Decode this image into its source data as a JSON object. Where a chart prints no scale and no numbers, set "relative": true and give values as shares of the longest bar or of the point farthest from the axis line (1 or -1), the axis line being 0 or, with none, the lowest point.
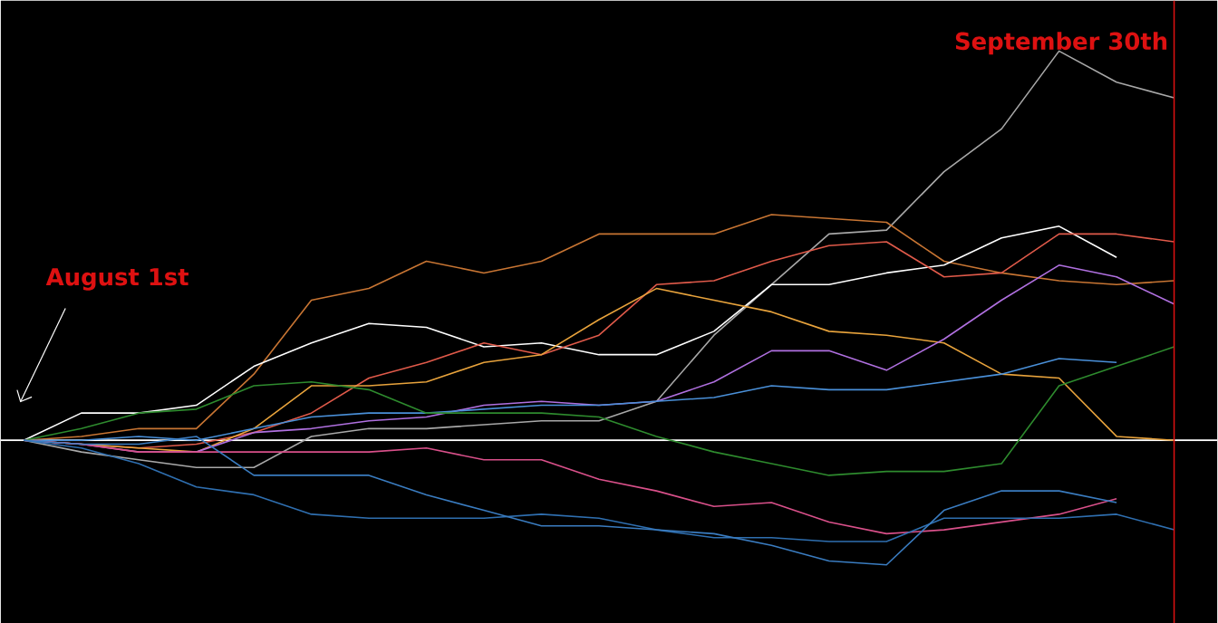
{
  "chart_data": {
    "type": "line",
    "relative": true,
    "categories": [
      null,
      null,
      null,
      null,
      null,
      null,
      null,
      null,
      null,
      null,
      null,
      null,
      null,
      null,
      null,
      null,
      null,
      null,
      null,
      null,
      null
    ],
    "series": [
      {
        "color": "#a8a8a8",
        "values": [
          0,
          -0.03,
          -0.05,
          -0.07,
          -0.07,
          0.01,
          0.03,
          0.03,
          0.04,
          0.05,
          0.05,
          0.1,
          0.27,
          0.4,
          0.53,
          0.54,
          0.69,
          0.8,
          1.0,
          0.92,
          0.88
        ]
      },
      {
        "color": "#c87533",
        "values": [
          0,
          0.01,
          0.03,
          0.03,
          0.17,
          0.36,
          0.39,
          0.46,
          0.43,
          0.46,
          0.53,
          0.53,
          0.53,
          0.58,
          0.57,
          0.56,
          0.46,
          0.43,
          0.41,
          0.4,
          0.41
        ]
      },
      {
        "color": "#ffffff",
        "values": [
          0,
          0.07,
          0.07,
          0.09,
          0.19,
          0.25,
          0.3,
          0.29,
          0.24,
          0.25,
          0.22,
          0.22,
          0.28,
          0.4,
          0.4,
          0.43,
          0.45,
          0.52,
          0.55,
          0.47,
          null
        ]
      },
      {
        "color": "#e05a4a",
        "values": [
          0,
          -0.01,
          -0.02,
          -0.01,
          0.02,
          0.07,
          0.16,
          0.2,
          0.25,
          0.22,
          0.27,
          0.4,
          0.41,
          0.46,
          0.5,
          0.51,
          0.42,
          0.43,
          0.53,
          0.53,
          0.51
        ]
      },
      {
        "color": "#e8a33c",
        "values": [
          0,
          -0.01,
          -0.02,
          -0.03,
          0.03,
          0.14,
          0.14,
          0.15,
          0.2,
          0.22,
          0.31,
          0.39,
          0.36,
          0.33,
          0.28,
          0.27,
          0.25,
          0.17,
          0.16,
          0.01,
          0
        ]
      },
      {
        "color": "#b070e0",
        "values": [
          0,
          -0.01,
          -0.03,
          -0.03,
          0.02,
          0.03,
          0.05,
          0.06,
          0.09,
          0.1,
          0.09,
          0.1,
          0.15,
          0.23,
          0.23,
          0.18,
          0.26,
          0.36,
          0.45,
          0.42,
          0.35
        ]
      },
      {
        "color": "#4a90d9",
        "values": [
          0,
          0.0,
          0.01,
          0.0,
          0.03,
          0.06,
          0.07,
          0.07,
          0.08,
          0.09,
          0.09,
          0.1,
          0.11,
          0.14,
          0.13,
          0.13,
          0.15,
          0.17,
          0.21,
          0.2,
          null
        ]
      },
      {
        "color": "#2e8b2e",
        "values": [
          0,
          0.03,
          0.07,
          0.08,
          0.14,
          0.15,
          0.13,
          0.07,
          0.07,
          0.07,
          0.06,
          0.01,
          -0.03,
          -0.06,
          -0.09,
          -0.08,
          -0.08,
          -0.06,
          0.14,
          0.19,
          0.24
        ]
      },
      {
        "color": "#d9508a",
        "values": [
          0,
          -0.01,
          -0.03,
          -0.03,
          -0.03,
          -0.03,
          -0.03,
          -0.02,
          -0.05,
          -0.05,
          -0.1,
          -0.13,
          -0.17,
          -0.16,
          -0.21,
          -0.24,
          -0.23,
          -0.21,
          -0.19,
          -0.15,
          null
        ]
      },
      {
        "color": "#2f6fb0",
        "values": [
          0,
          -0.02,
          -0.06,
          -0.12,
          -0.14,
          -0.19,
          -0.2,
          -0.2,
          -0.2,
          -0.19,
          -0.2,
          -0.23,
          -0.25,
          -0.25,
          -0.26,
          -0.26,
          -0.2,
          -0.2,
          -0.2,
          -0.19,
          -0.23
        ]
      },
      {
        "color": "#3a7cc0",
        "values": [
          0,
          -0.01,
          -0.01,
          0.01,
          -0.09,
          -0.09,
          -0.09,
          -0.14,
          -0.18,
          -0.22,
          -0.22,
          -0.23,
          -0.24,
          -0.27,
          -0.31,
          -0.32,
          -0.18,
          -0.13,
          -0.13,
          -0.16,
          null
        ]
      }
    ],
    "annotations": [
      "August 1st",
      "September 30th"
    ]
  }
}
